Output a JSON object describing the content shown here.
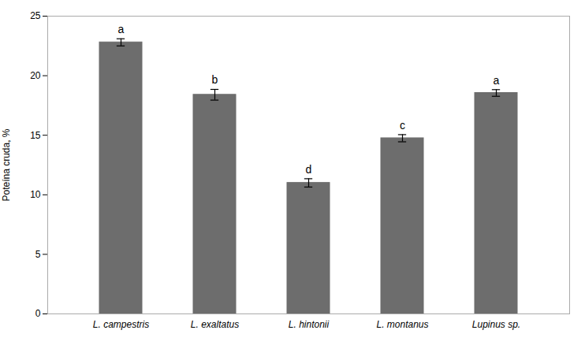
{
  "chart_data": {
    "type": "bar",
    "categories": [
      "L. campestris",
      "L. exaltatus",
      "L. hintonii",
      "L. montanus",
      "Lupinus sp."
    ],
    "values": [
      22.8,
      18.4,
      11.0,
      14.75,
      18.55
    ],
    "errors": [
      0.3,
      0.45,
      0.35,
      0.3,
      0.28
    ],
    "letters": [
      "a",
      "b",
      "d",
      "c",
      "a"
    ],
    "color": "#6d6d6d",
    "ylabel": "Poteína cruda, %",
    "ylim": [
      0,
      25
    ],
    "yticks": [
      0,
      5,
      10,
      15,
      20,
      25
    ],
    "grid": false
  }
}
